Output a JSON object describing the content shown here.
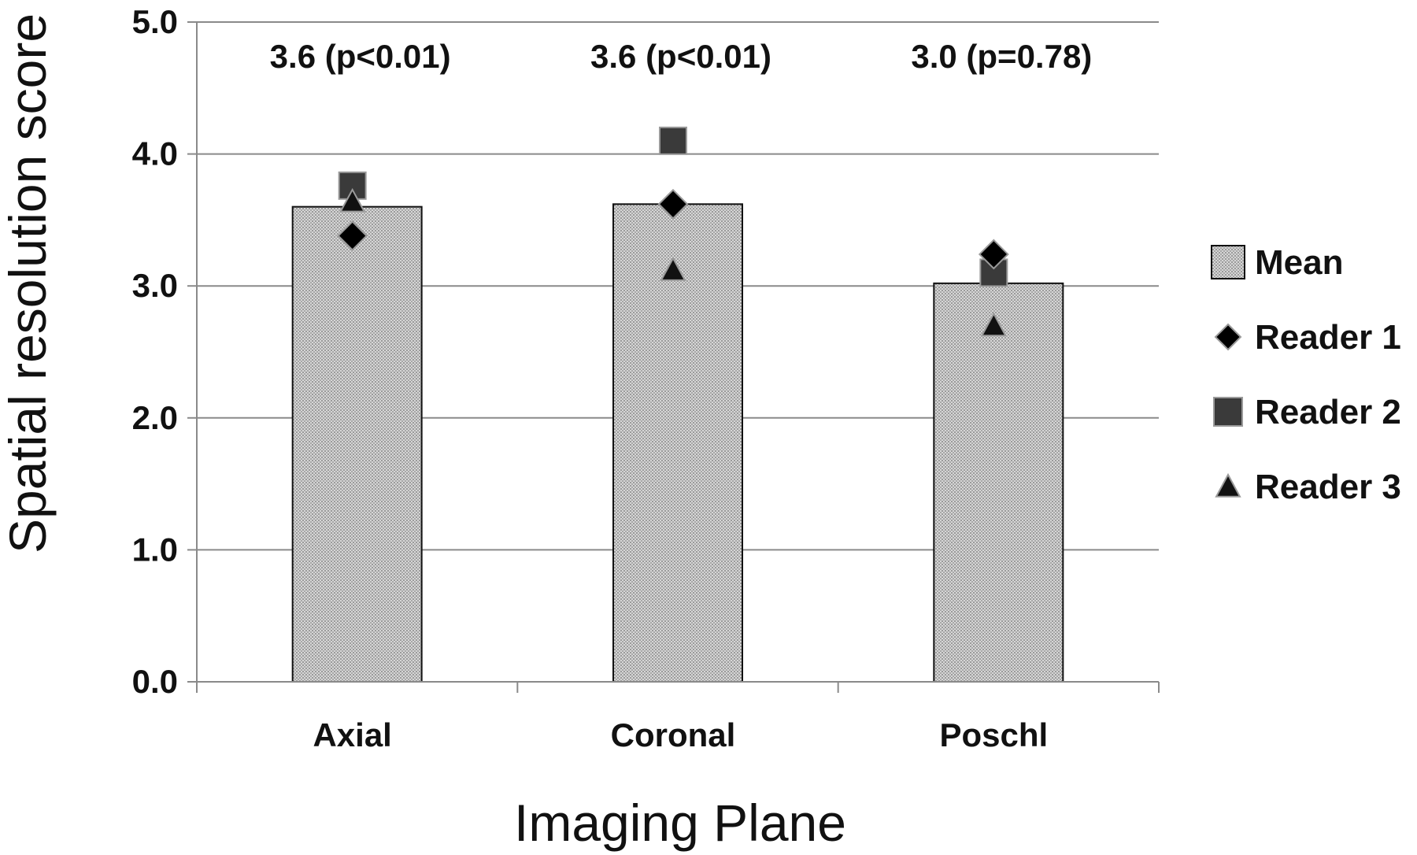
{
  "chart_data": {
    "type": "bar",
    "xlabel": "Imaging Plane",
    "ylabel": "Spatial resolution score",
    "categories": [
      "Axial",
      "Coronal",
      "Poschl"
    ],
    "ylim": [
      0,
      5
    ],
    "yticks": [
      "0.0",
      "1.0",
      "2.0",
      "3.0",
      "4.0",
      "5.0"
    ],
    "grid": true,
    "legend_position": "right",
    "series": [
      {
        "name": "Mean",
        "kind": "bar",
        "marker": "square",
        "values": [
          3.6,
          3.62,
          3.02
        ]
      },
      {
        "name": "Reader 1",
        "kind": "point",
        "marker": "diamond",
        "values": [
          3.38,
          3.62,
          3.24
        ]
      },
      {
        "name": "Reader 2",
        "kind": "point",
        "marker": "square",
        "values": [
          3.76,
          4.1,
          3.1
        ]
      },
      {
        "name": "Reader 3",
        "kind": "point",
        "marker": "triangle",
        "values": [
          3.64,
          3.12,
          2.7
        ]
      }
    ],
    "annotations": [
      "3.6 (p<0.01)",
      "3.6 (p<0.01)",
      "3.0 (p=0.78)"
    ],
    "colors": {
      "bar_fill": "#c9c9c9",
      "bar_stroke": "#111111",
      "reader1": "#000000",
      "reader2": "#3a3a3a",
      "reader3": "#111111",
      "grid": "#8a8a8a",
      "axis": "#8a8a8a"
    }
  }
}
